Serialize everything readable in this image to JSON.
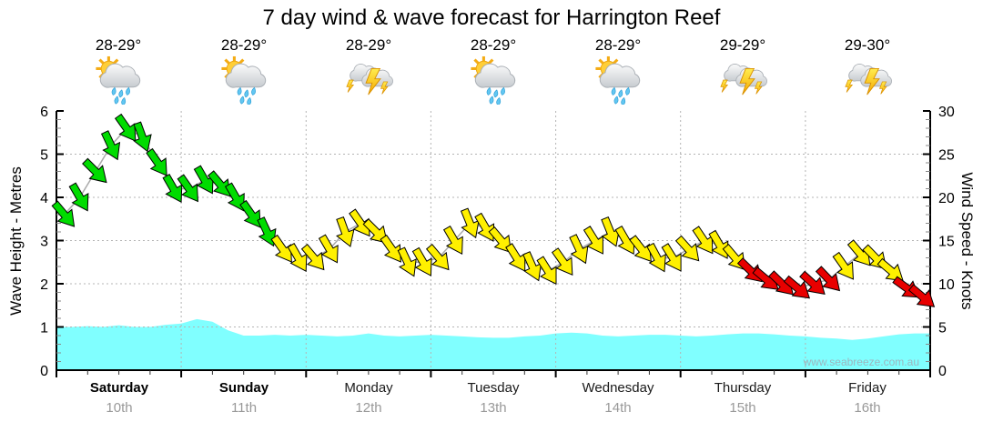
{
  "title": "7 day wind & wave forecast for Harrington Reef",
  "watermark": "www.seabreeze.com.au",
  "days": [
    {
      "name": "Saturday",
      "date": "10th",
      "temp": "28-29°",
      "icon": "sun-cloud-rain"
    },
    {
      "name": "Sunday",
      "date": "11th",
      "temp": "28-29°",
      "icon": "sun-cloud-rain"
    },
    {
      "name": "Monday",
      "date": "12th",
      "temp": "28-29°",
      "icon": "storm"
    },
    {
      "name": "Tuesday",
      "date": "13th",
      "temp": "28-29°",
      "icon": "sun-cloud-rain"
    },
    {
      "name": "Wednesday",
      "date": "14th",
      "temp": "28-29°",
      "icon": "sun-cloud-rain"
    },
    {
      "name": "Thursday",
      "date": "15th",
      "temp": "29-29°",
      "icon": "storm"
    },
    {
      "name": "Friday",
      "date": "16th",
      "temp": "29-30°",
      "icon": "storm"
    }
  ],
  "axes": {
    "left_label": "Wave Height - Metres",
    "right_label": "Wind Speed - Knots",
    "left_ticks": [
      0,
      1,
      2,
      3,
      4,
      5,
      6
    ],
    "right_ticks": [
      0,
      5,
      10,
      15,
      20,
      25,
      30
    ]
  },
  "chart_data": {
    "type": "area+wind-arrows",
    "x_description": "7 days, 8 samples per day (3-hourly), Saturday 10th to Friday 16th",
    "ylim_left_metres": [
      0,
      6
    ],
    "ylim_right_knots": [
      0,
      30
    ],
    "grid": "dotted horizontal each metre, dotted vertical each day boundary",
    "wind_knots": [
      18,
      20,
      23,
      26,
      28,
      27,
      24,
      21,
      21,
      22,
      21.5,
      20,
      18,
      16,
      14,
      13,
      13,
      14,
      16,
      17,
      16,
      14,
      12.5,
      12.5,
      13,
      15,
      17,
      16.5,
      15,
      13,
      12,
      11.5,
      12.5,
      14,
      15,
      16,
      15,
      14,
      13,
      13,
      14,
      15,
      14.5,
      13,
      11.5,
      10.5,
      10,
      9.5,
      10,
      10.5,
      12,
      13.5,
      13,
      11.5,
      9.5,
      8.5
    ],
    "wind_colors": [
      "green",
      "green",
      "green",
      "green",
      "green",
      "green",
      "green",
      "green",
      "green",
      "green",
      "green",
      "green",
      "green",
      "green",
      "yellow",
      "yellow",
      "yellow",
      "yellow",
      "yellow",
      "yellow",
      "yellow",
      "yellow",
      "yellow",
      "yellow",
      "yellow",
      "yellow",
      "yellow",
      "yellow",
      "yellow",
      "yellow",
      "yellow",
      "yellow",
      "yellow",
      "yellow",
      "yellow",
      "yellow",
      "yellow",
      "yellow",
      "yellow",
      "yellow",
      "yellow",
      "yellow",
      "yellow",
      "yellow",
      "red",
      "red",
      "red",
      "red",
      "red",
      "red",
      "yellow",
      "yellow",
      "yellow",
      "yellow",
      "red",
      "red"
    ],
    "wind_dir_deg": [
      50,
      60,
      45,
      65,
      55,
      70,
      55,
      60,
      55,
      60,
      50,
      60,
      55,
      65,
      55,
      60,
      50,
      60,
      70,
      55,
      45,
      55,
      65,
      60,
      50,
      60,
      68,
      60,
      50,
      58,
      66,
      58,
      55,
      65,
      58,
      68,
      60,
      52,
      62,
      58,
      48,
      56,
      60,
      50,
      44,
      40,
      44,
      40,
      42,
      46,
      55,
      50,
      46,
      40,
      36,
      40
    ],
    "wave_metres": [
      1.0,
      1.0,
      1.02,
      1.0,
      1.04,
      1.0,
      1.0,
      1.05,
      1.08,
      1.18,
      1.12,
      0.92,
      0.8,
      0.8,
      0.82,
      0.8,
      0.82,
      0.8,
      0.78,
      0.8,
      0.85,
      0.8,
      0.78,
      0.8,
      0.82,
      0.8,
      0.78,
      0.76,
      0.75,
      0.75,
      0.78,
      0.8,
      0.85,
      0.87,
      0.85,
      0.8,
      0.78,
      0.8,
      0.82,
      0.82,
      0.8,
      0.78,
      0.8,
      0.83,
      0.85,
      0.85,
      0.83,
      0.8,
      0.78,
      0.75,
      0.73,
      0.7,
      0.73,
      0.78,
      0.83,
      0.85,
      0.85
    ],
    "colors": {
      "green": "#00DC00",
      "yellow": "#FFF000",
      "red": "#E80000",
      "wave": "#80FFFF",
      "grid": "#b4b4b4",
      "axis": "#000000"
    }
  }
}
